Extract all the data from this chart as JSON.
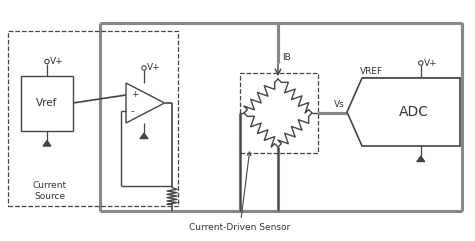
{
  "bg_color": "#ffffff",
  "line_color": "#444444",
  "thick_line_color": "#888888",
  "text_color": "#333333",
  "labels": {
    "vref_box": "Vref",
    "vplus": "V+",
    "current_source": "Current\nSource",
    "IB": "IB",
    "Vs": "Vs",
    "VREF": "VREF",
    "ADC": "ADC",
    "current_driven_sensor": "Current-Driven Sensor",
    "plus": "+",
    "minus": "-"
  },
  "fig_width": 4.75,
  "fig_height": 2.41,
  "dpi": 100
}
